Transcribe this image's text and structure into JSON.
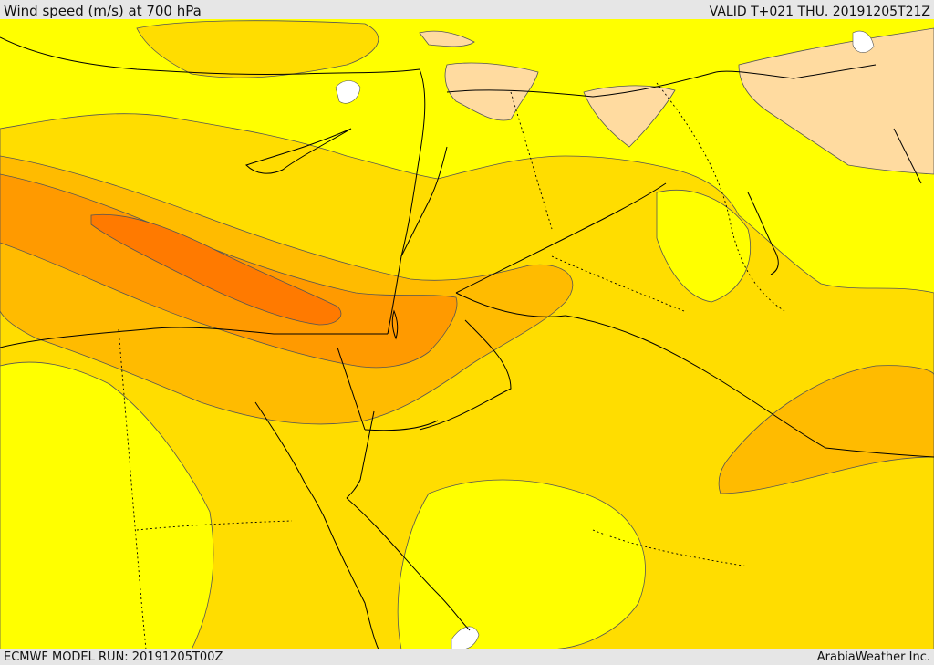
{
  "header": {
    "title": "Wind speed (m/s) at 700 hPa",
    "valid": "VALID T+021 THU. 20191205T21Z"
  },
  "footer": {
    "model_run": "ECMWF MODEL RUN: 20191205T00Z",
    "credit": "ArabiaWeather Inc."
  },
  "map": {
    "colors": {
      "calm_band": "#ffdba0",
      "band_1": "#ffff00",
      "band_2": "#ffdd00",
      "band_3": "#ffbb00",
      "band_4": "#ff9a00",
      "band_5": "#ff7a00",
      "no_data": "#ffffff",
      "coastline": "#000000",
      "border": "#000000",
      "contour": "#555555"
    }
  }
}
